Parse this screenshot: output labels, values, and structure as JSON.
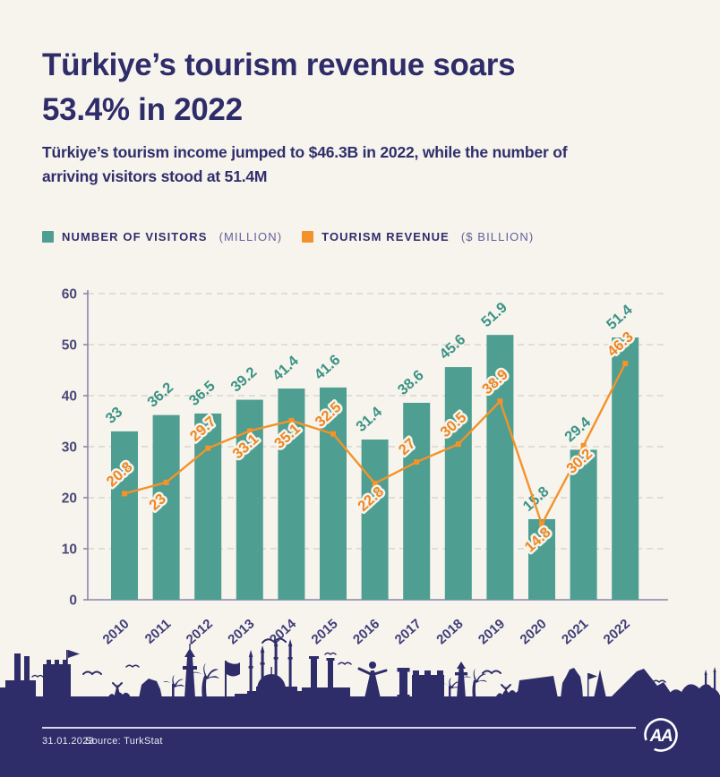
{
  "header": {
    "title": "Türkiye’s tourism revenue soars\n53.4% in 2022",
    "subtitle": "Türkiye’s tourism income jumped to $46.3B in 2022, while the number of\narriving visitors stood at 51.4M"
  },
  "legend": {
    "items": [
      {
        "label": "NUMBER OF VISITORS",
        "unit": "(MILLION)",
        "color": "#4e9e92"
      },
      {
        "label": "TOURISM REVENUE",
        "unit": "($ BILLION)",
        "color": "#f3912a"
      }
    ]
  },
  "chart_data": {
    "type": "bar",
    "categories": [
      "2010",
      "2011",
      "2012",
      "2013",
      "2014",
      "2015",
      "2016",
      "2017",
      "2018",
      "2019",
      "2020",
      "2021",
      "2022"
    ],
    "series": [
      {
        "name": "Number of visitors (million)",
        "type": "bar",
        "color": "#4e9e92",
        "values": [
          33,
          36.2,
          36.5,
          39.2,
          41.4,
          41.6,
          31.4,
          38.6,
          45.6,
          51.9,
          15.8,
          29.4,
          51.4
        ]
      },
      {
        "name": "Tourism revenue ($ billion)",
        "type": "line",
        "color": "#f3932a",
        "values": [
          20.8,
          23,
          29.7,
          33.1,
          35.1,
          32.5,
          22.8,
          27,
          30.5,
          38.9,
          14.8,
          30.2,
          46.3
        ]
      }
    ],
    "title": "Türkiye’s tourism revenue soars 53.4% in 2022",
    "xlabel": "",
    "ylabel": "",
    "ylim": [
      0,
      60
    ],
    "yticks": [
      0,
      10,
      20,
      30,
      40,
      50,
      60
    ],
    "grid": "dashed-horizontal",
    "legend_position": "top-left",
    "line_label_side": [
      "above",
      "below",
      "above",
      "below",
      "below",
      "above",
      "below",
      "above",
      "above",
      "above",
      "below",
      "below",
      "above"
    ]
  },
  "footer": {
    "date": "31.01.2023",
    "source": "Source: TurkStat",
    "logo_text": "AA",
    "band_color": "#2e2c69"
  },
  "colors": {
    "background": "#f6f4ed",
    "title_navy": "#2e2c69",
    "bar_teal": "#4e9e92",
    "line_orange": "#f3932a",
    "axis_purple": "#8886ad"
  }
}
